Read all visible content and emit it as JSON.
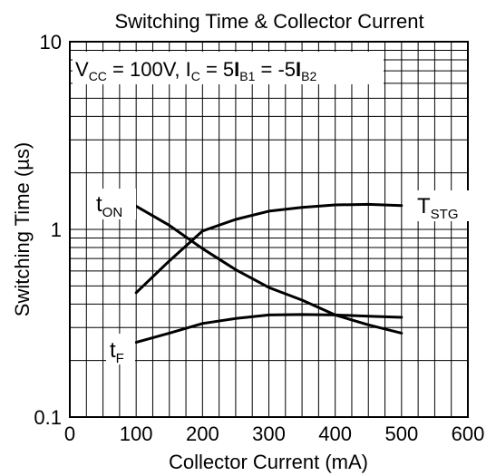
{
  "chart_data": {
    "type": "line",
    "title": "Switching Time & Collector Current",
    "xlabel": "Collector Current (mA)",
    "ylabel": "Switching Time (µs)",
    "x_scale": "linear",
    "y_scale": "log",
    "xlim": [
      0,
      600
    ],
    "ylim": [
      0.1,
      10
    ],
    "x_ticks": [
      "0",
      "100",
      "200",
      "300",
      "400",
      "500",
      "600"
    ],
    "y_ticks": [
      "0.1",
      "1",
      "10"
    ],
    "grid": true,
    "condition": {
      "parts": [
        {
          "t": "V",
          "style": "normal"
        },
        {
          "t": "CC",
          "style": "sub"
        },
        {
          "t": " = 100V, I",
          "style": "normal"
        },
        {
          "t": "C",
          "style": "sub"
        },
        {
          "t": " = 5",
          "style": "normal"
        },
        {
          "t": "I",
          "style": "bold"
        },
        {
          "t": "B1",
          "style": "sub"
        },
        {
          "t": " = -5",
          "style": "normal"
        },
        {
          "t": "I",
          "style": "bold"
        },
        {
          "t": "B2",
          "style": "sub"
        }
      ]
    },
    "series": [
      {
        "name": "TSTG",
        "label_main": "T",
        "label_sub": "STG",
        "x": [
          100,
          150,
          200,
          250,
          300,
          350,
          400,
          450,
          500
        ],
        "y": [
          0.46,
          0.68,
          0.98,
          1.13,
          1.25,
          1.31,
          1.35,
          1.36,
          1.34
        ]
      },
      {
        "name": "tON",
        "label_main": "t",
        "label_sub": "ON",
        "x": [
          100,
          150,
          200,
          250,
          300,
          350,
          400,
          450,
          500
        ],
        "y": [
          1.33,
          1.05,
          0.79,
          0.61,
          0.49,
          0.42,
          0.35,
          0.31,
          0.28
        ]
      },
      {
        "name": "tF",
        "label_main": "t",
        "label_sub": "F",
        "x": [
          100,
          150,
          200,
          250,
          300,
          350,
          400,
          450,
          500
        ],
        "y": [
          0.25,
          0.28,
          0.315,
          0.335,
          0.35,
          0.352,
          0.35,
          0.345,
          0.34
        ]
      }
    ]
  }
}
